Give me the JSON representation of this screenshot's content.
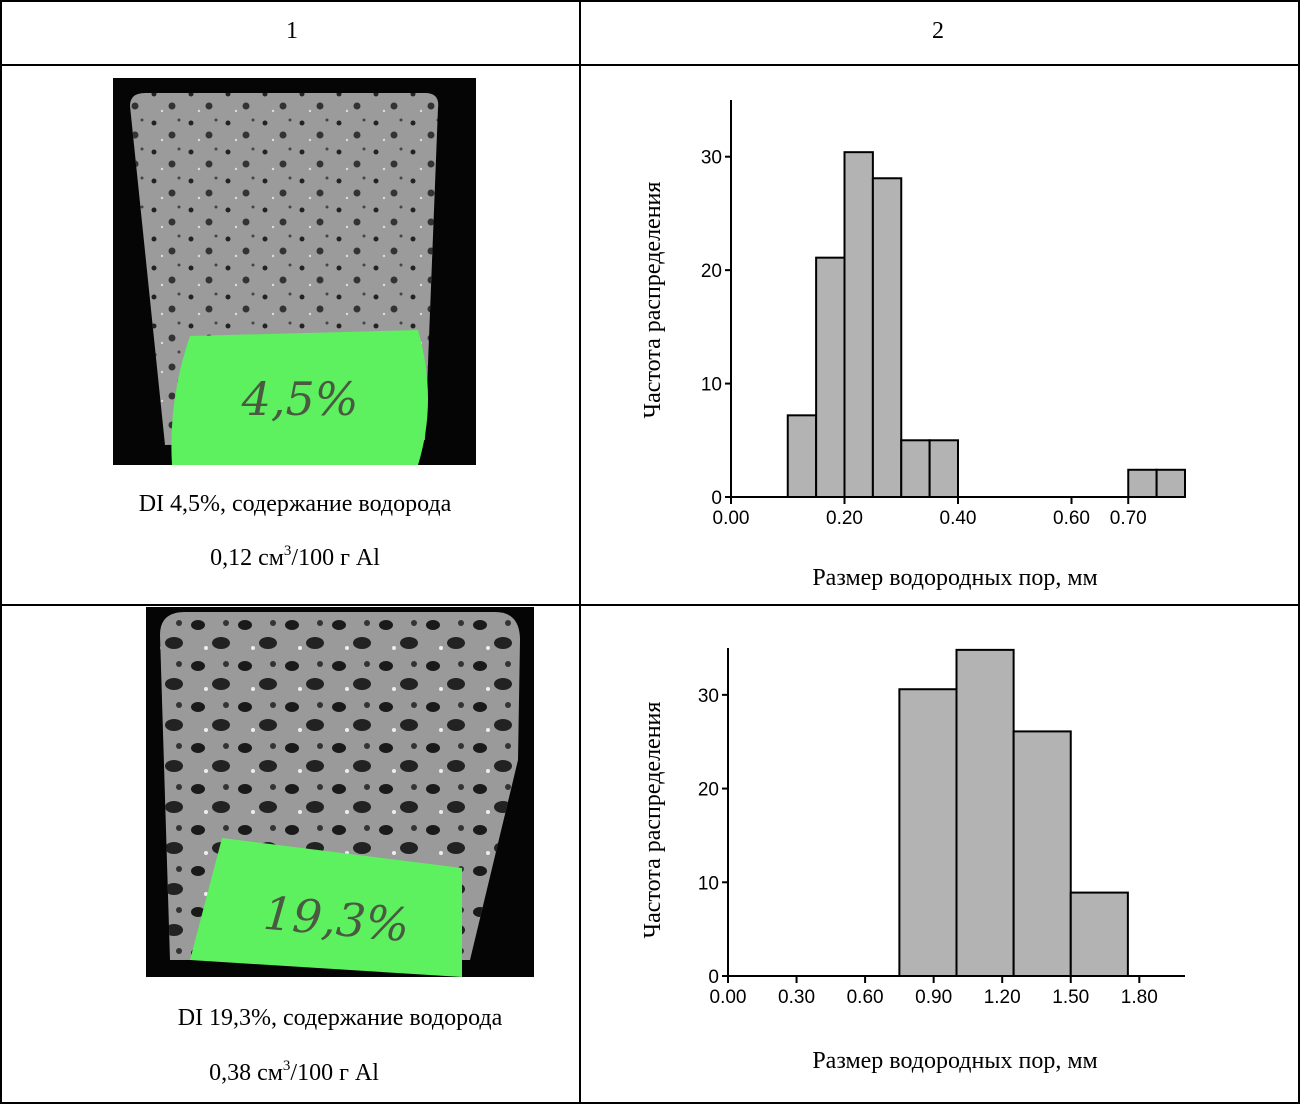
{
  "table": {
    "header": [
      "1",
      "2"
    ],
    "rows": [
      {
        "photo_label": "4,5%",
        "caption": [
          "DI 4,5%, содержание водорода",
          "0,12 см",
          "3",
          "/100 г Al"
        ]
      },
      {
        "photo_label": "19,3%",
        "caption": [
          "DI 19,3%, содержание водорода",
          "0,38 см",
          "3",
          "/100 г Al"
        ]
      }
    ]
  },
  "chart_data": [
    {
      "type": "histogram",
      "xlabel": "Размер водородных пор, мм",
      "ylabel": "Частота распределения",
      "color": "#b3b3b3",
      "bins": [
        0.1,
        0.15,
        0.2,
        0.25,
        0.3,
        0.35,
        0.4,
        0.45,
        0.5,
        0.55,
        0.6,
        0.65,
        0.7,
        0.75,
        0.8
      ],
      "values": [
        7.2,
        21.1,
        30.4,
        28.1,
        5,
        5,
        0,
        0,
        0,
        0,
        0,
        0,
        2.4,
        2.4
      ],
      "xlim": [
        0,
        0.8
      ],
      "ylim": [
        0,
        35
      ],
      "xticks": [
        {
          "value": 0,
          "label": "0.00"
        },
        {
          "value": 0.2,
          "label": "0.20"
        },
        {
          "value": 0.4,
          "label": "0.40"
        },
        {
          "value": 0.6,
          "label": "0.60"
        },
        {
          "value": 0.7,
          "label": "0.70"
        }
      ],
      "yticks": [
        0,
        10,
        20,
        30
      ]
    },
    {
      "type": "histogram",
      "xlabel": "Размер водородных пор, мм",
      "ylabel": "Частота распределения",
      "color": "#b3b3b3",
      "bins": [
        0.75,
        1.0,
        1.25,
        1.5,
        1.75
      ],
      "values": [
        30.6,
        34.8,
        26.1,
        8.9
      ],
      "xlim": [
        0,
        2.0
      ],
      "ylim": [
        0,
        35
      ],
      "xticks": [
        {
          "value": 0,
          "label": "0.00"
        },
        {
          "value": 0.3,
          "label": "0.30"
        },
        {
          "value": 0.6,
          "label": "0.60"
        },
        {
          "value": 0.9,
          "label": "0.90"
        },
        {
          "value": 1.2,
          "label": "1.20"
        },
        {
          "value": 1.5,
          "label": "1.50"
        },
        {
          "value": 1.8,
          "label": "1.80"
        }
      ],
      "yticks": [
        0,
        10,
        20,
        30
      ]
    }
  ]
}
